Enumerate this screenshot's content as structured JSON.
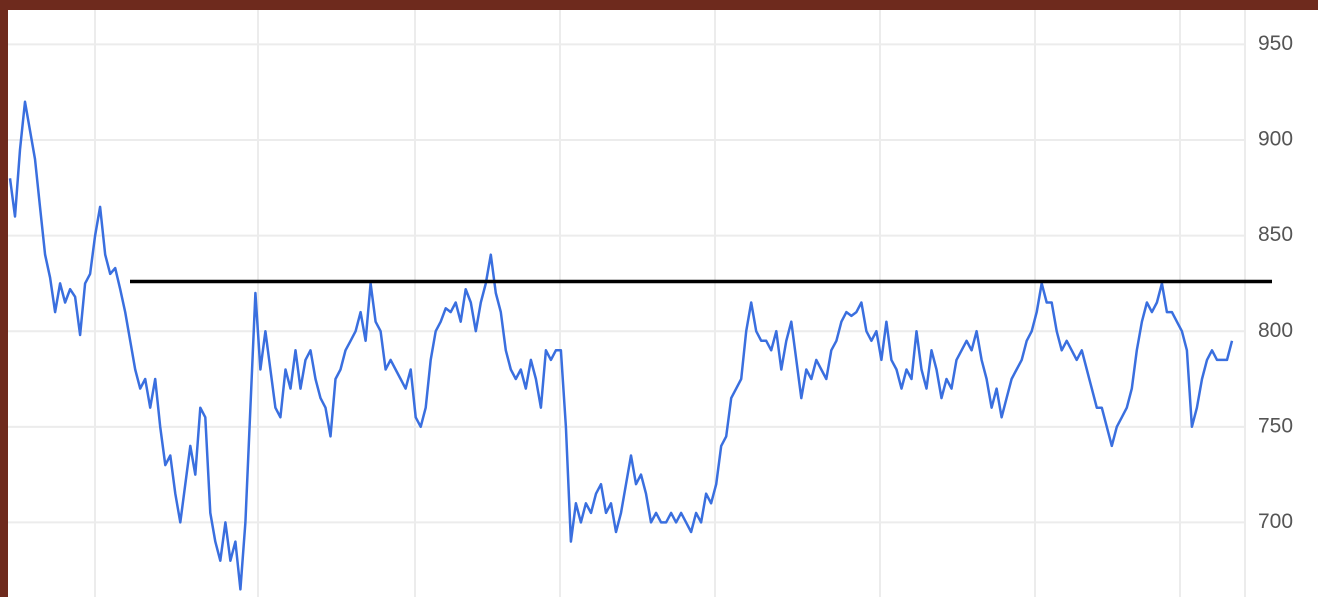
{
  "chart_data": {
    "type": "line",
    "series": [
      {
        "color": "#3a6fdf",
        "values": [
          880,
          860,
          895,
          920,
          905,
          890,
          865,
          840,
          828,
          810,
          825,
          815,
          822,
          818,
          798,
          825,
          830,
          850,
          865,
          840,
          830,
          833,
          822,
          810,
          795,
          780,
          770,
          775,
          760,
          775,
          750,
          730,
          735,
          715,
          700,
          720,
          740,
          725,
          760,
          755,
          705,
          690,
          680,
          700,
          680,
          690,
          665,
          700,
          760,
          820,
          780,
          800,
          780,
          760,
          755,
          780,
          770,
          790,
          770,
          785,
          790,
          775,
          765,
          760,
          745,
          775,
          780,
          790,
          795,
          800,
          810,
          795,
          825,
          805,
          800,
          780,
          785,
          780,
          775,
          770,
          780,
          755,
          750,
          760,
          785,
          800,
          805,
          812,
          810,
          815,
          805,
          822,
          815,
          800,
          815,
          825,
          840,
          820,
          810,
          790,
          780,
          775,
          780,
          770,
          785,
          775,
          760,
          790,
          785,
          790,
          790,
          750,
          690,
          710,
          700,
          710,
          705,
          715,
          720,
          705,
          710,
          695,
          705,
          720,
          735,
          720,
          725,
          715,
          700,
          705,
          700,
          700,
          705,
          700,
          705,
          700,
          695,
          705,
          700,
          715,
          710,
          720,
          740,
          745,
          765,
          770,
          775,
          800,
          815,
          800,
          795,
          795,
          790,
          800,
          780,
          795,
          805,
          785,
          765,
          780,
          775,
          785,
          780,
          775,
          790,
          795,
          805,
          810,
          808,
          810,
          815,
          800,
          795,
          800,
          785,
          805,
          785,
          780,
          770,
          780,
          775,
          800,
          780,
          770,
          790,
          780,
          765,
          775,
          770,
          785,
          790,
          795,
          790,
          800,
          785,
          775,
          760,
          770,
          755,
          765,
          775,
          780,
          785,
          795,
          800,
          810,
          825,
          815,
          815,
          800,
          790,
          795,
          790,
          785,
          790,
          780,
          770,
          760,
          760,
          750,
          740,
          750,
          755,
          760,
          770,
          790,
          805,
          815,
          810,
          815,
          825,
          810,
          810,
          805,
          800,
          790,
          750,
          760,
          775,
          785,
          790,
          785,
          785,
          785,
          795
        ]
      }
    ],
    "hline": 826,
    "ylim": [
      661,
      968
    ],
    "yticks": [
      700,
      750,
      800,
      850,
      900,
      950
    ],
    "grid": true
  }
}
